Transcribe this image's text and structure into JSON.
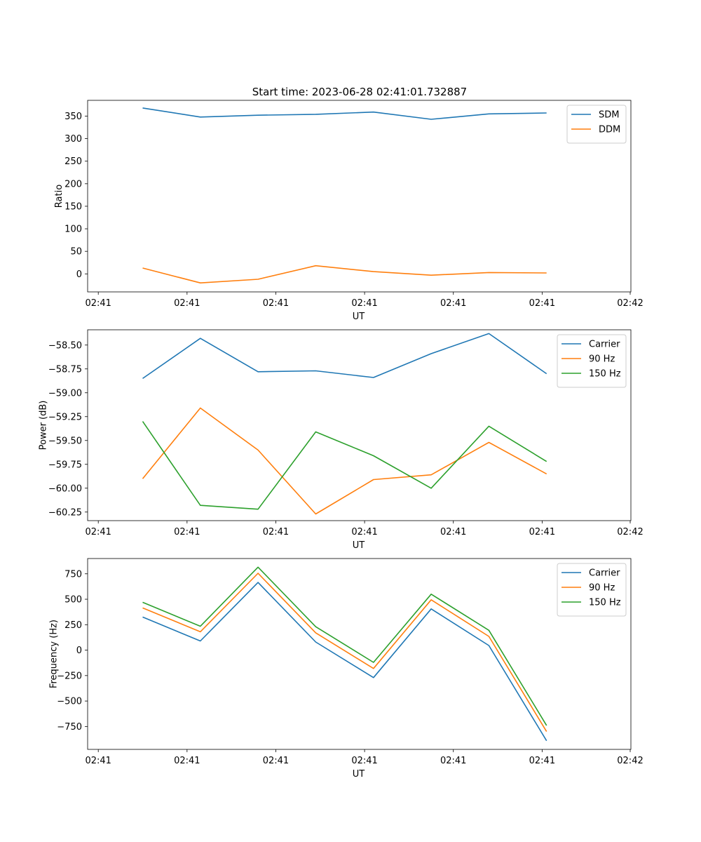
{
  "figure_title": "Start time: 2023-06-28 02:41:01.732887",
  "chart_data": [
    {
      "type": "line",
      "title": "Start time: 2023-06-28 02:41:01.732887",
      "xlabel": "UT",
      "ylabel": "Ratio",
      "x_tick_labels": [
        "02:41",
        "02:41",
        "02:41",
        "02:41",
        "02:41",
        "02:41",
        "02:41"
      ],
      "x_end_tick_label": "02:42",
      "xlim": [
        -0.12,
        6.0
      ],
      "ylim": [
        -40,
        385
      ],
      "yticks": [
        0,
        50,
        100,
        150,
        200,
        250,
        300,
        350
      ],
      "ytick_labels": [
        "0",
        "50",
        "100",
        "150",
        "200",
        "250",
        "300",
        "350"
      ],
      "x": [
        0.5,
        1.15,
        1.8,
        2.45,
        3.1,
        3.75,
        4.4,
        5.05
      ],
      "legend_position": "upper right",
      "grid": false,
      "series": [
        {
          "name": "SDM",
          "color": "#1f77b4",
          "values": [
            368,
            348,
            352,
            354,
            359,
            343,
            355,
            357
          ]
        },
        {
          "name": "DDM",
          "color": "#ff7f0e",
          "values": [
            13,
            -20,
            -12,
            18,
            5,
            -3,
            3,
            2
          ]
        }
      ]
    },
    {
      "type": "line",
      "xlabel": "UT",
      "ylabel": "Power (dB)",
      "x_tick_labels": [
        "02:41",
        "02:41",
        "02:41",
        "02:41",
        "02:41",
        "02:41",
        "02:41"
      ],
      "x_end_tick_label": "02:42",
      "xlim": [
        -0.12,
        6.0
      ],
      "ylim": [
        -60.34,
        -58.34
      ],
      "yticks": [
        -60.25,
        -60.0,
        -59.75,
        -59.5,
        -59.25,
        -59.0,
        -58.75,
        -58.5
      ],
      "ytick_labels": [
        "−60.25",
        "−60.00",
        "−59.75",
        "−59.50",
        "−59.25",
        "−59.00",
        "−58.75",
        "−58.50"
      ],
      "x": [
        0.5,
        1.15,
        1.8,
        2.45,
        3.1,
        3.75,
        4.4,
        5.05
      ],
      "legend_position": "upper right",
      "grid": false,
      "series": [
        {
          "name": "Carrier",
          "color": "#1f77b4",
          "values": [
            -58.85,
            -58.43,
            -58.78,
            -58.77,
            -58.84,
            -58.59,
            -58.38,
            -58.8
          ]
        },
        {
          "name": "90 Hz",
          "color": "#ff7f0e",
          "values": [
            -59.9,
            -59.16,
            -59.6,
            -60.27,
            -59.91,
            -59.86,
            -59.52,
            -59.85
          ]
        },
        {
          "name": "150 Hz",
          "color": "#2ca02c",
          "values": [
            -59.3,
            -60.18,
            -60.22,
            -59.41,
            -59.66,
            -60.0,
            -59.35,
            -59.72
          ]
        }
      ]
    },
    {
      "type": "line",
      "xlabel": "UT",
      "ylabel": "Frequency (Hz)",
      "x_tick_labels": [
        "02:41",
        "02:41",
        "02:41",
        "02:41",
        "02:41",
        "02:41",
        "02:41"
      ],
      "x_end_tick_label": "02:42",
      "xlim": [
        -0.12,
        6.0
      ],
      "ylim": [
        -975,
        900
      ],
      "yticks": [
        -750,
        -500,
        -250,
        0,
        250,
        500,
        750
      ],
      "ytick_labels": [
        "−750",
        "−500",
        "−250",
        "0",
        "250",
        "500",
        "750"
      ],
      "x": [
        0.5,
        1.15,
        1.8,
        2.45,
        3.1,
        3.75,
        4.4,
        5.05
      ],
      "legend_position": "upper right",
      "grid": false,
      "series": [
        {
          "name": "Carrier",
          "color": "#1f77b4",
          "values": [
            325,
            90,
            665,
            80,
            -270,
            405,
            45,
            -890
          ]
        },
        {
          "name": "90 Hz",
          "color": "#ff7f0e",
          "values": [
            415,
            180,
            755,
            170,
            -180,
            495,
            135,
            -800
          ]
        },
        {
          "name": "150 Hz",
          "color": "#2ca02c",
          "values": [
            470,
            235,
            815,
            230,
            -120,
            550,
            195,
            -740
          ]
        }
      ]
    }
  ]
}
